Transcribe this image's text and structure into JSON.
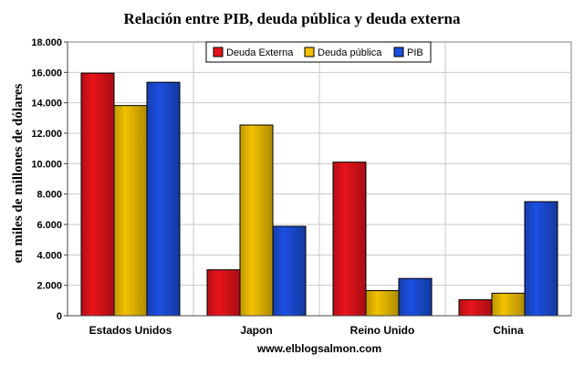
{
  "chart_data": {
    "type": "bar",
    "title": "Relación entre PIB, deuda pública y deuda externa",
    "xlabel": "",
    "ylabel": "en miles de millones de dólares",
    "categories": [
      "Estados Unidos",
      "Japon",
      "Reino Unido",
      "China"
    ],
    "series": [
      {
        "name": "Deuda Externa",
        "color": "#e8131b",
        "values": [
          15950,
          3020,
          10100,
          1050
        ]
      },
      {
        "name": "Deuda pública",
        "color": "#f2c100",
        "values": [
          13820,
          12540,
          1650,
          1480
        ]
      },
      {
        "name": "PIB",
        "color": "#1c4fe0",
        "values": [
          15350,
          5880,
          2450,
          7500
        ]
      }
    ],
    "ylim": [
      0,
      18000
    ],
    "yticks": [
      0,
      2000,
      4000,
      6000,
      8000,
      10000,
      12000,
      14000,
      16000,
      18000
    ],
    "ytick_labels": [
      "0",
      "2.000",
      "4.000",
      "6.000",
      "8.000",
      "10.000",
      "12.000",
      "14.000",
      "16.000",
      "18.000"
    ],
    "grid": true,
    "legend_position": "top-center",
    "source": "www.elblogsalmon.com"
  }
}
